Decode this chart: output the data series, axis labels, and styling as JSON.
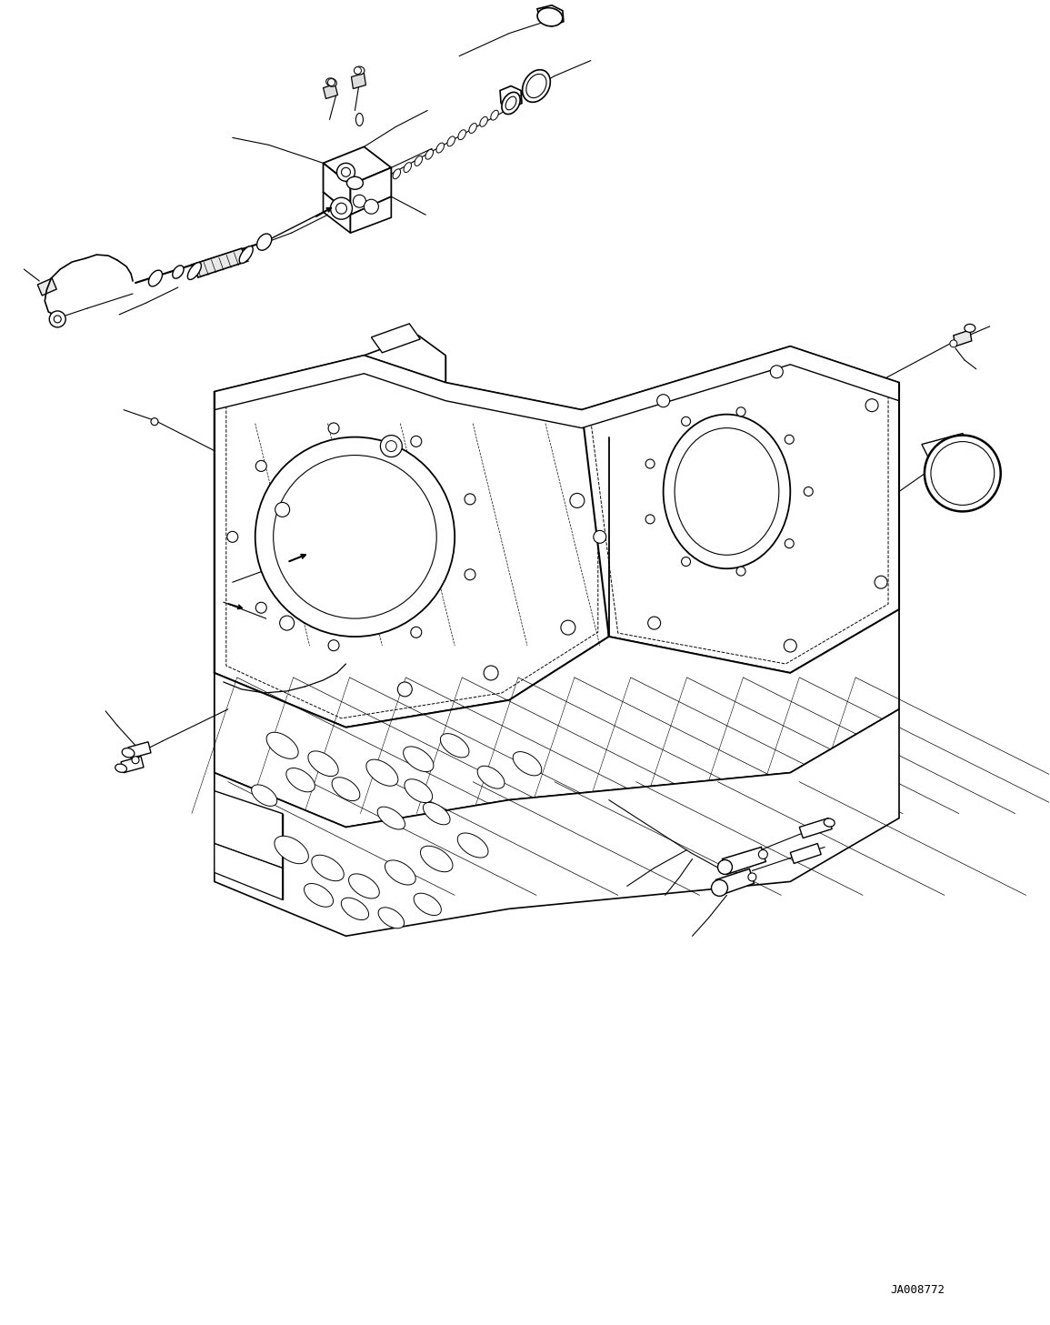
{
  "background_color": "#ffffff",
  "line_color": "#000000",
  "figure_code": "JA008772",
  "fig_width": 11.55,
  "fig_height": 14.57,
  "dpi": 100
}
